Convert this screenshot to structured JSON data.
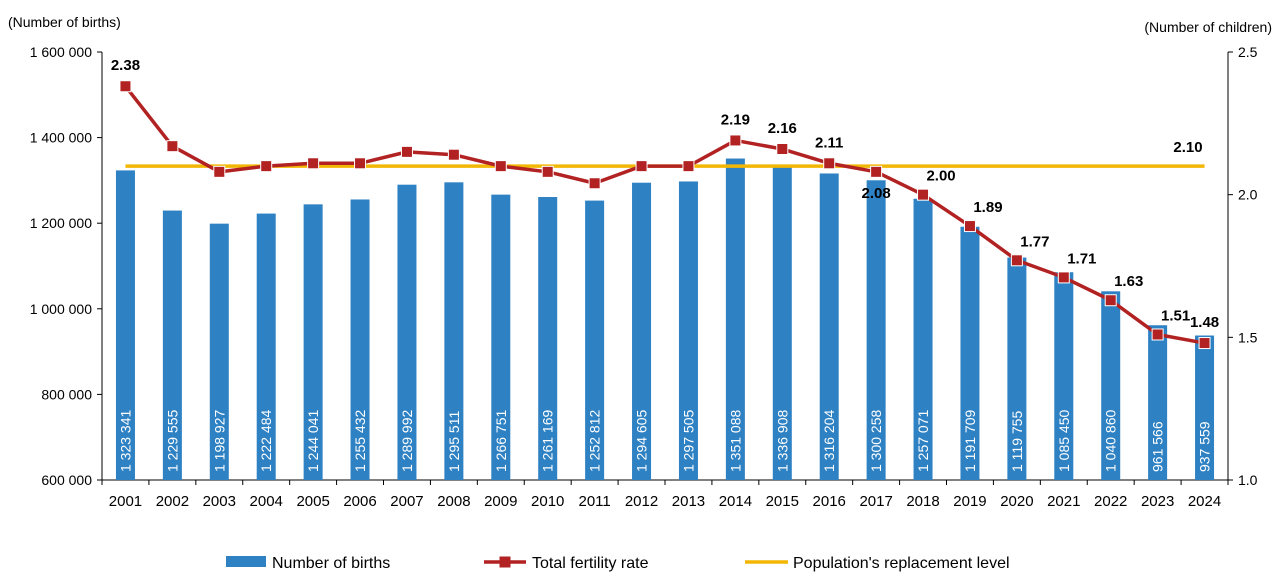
{
  "chart_data": {
    "type": "bar",
    "left_axis_title": "(Number of births)",
    "right_axis_title": "(Number of children)",
    "categories": [
      "2001",
      "2002",
      "2003",
      "2004",
      "2005",
      "2006",
      "2007",
      "2008",
      "2009",
      "2010",
      "2011",
      "2012",
      "2013",
      "2014",
      "2015",
      "2016",
      "2017",
      "2018",
      "2019",
      "2020",
      "2021",
      "2022",
      "2023",
      "2024"
    ],
    "ylim_left": [
      600000,
      1600000
    ],
    "yticks_left": [
      "600 000",
      "800 000",
      "1 000 000",
      "1 200 000",
      "1 400 000",
      "1 600 000"
    ],
    "ylim_right": [
      1.0,
      2.5
    ],
    "yticks_right": [
      "1.0",
      "1.5",
      "2.0",
      "2.5"
    ],
    "series": [
      {
        "name": "Number of births",
        "kind": "bar",
        "axis": "left",
        "color": "#2E81C3",
        "values": [
          1323341,
          1229555,
          1198927,
          1222484,
          1244041,
          1255432,
          1289992,
          1295511,
          1266751,
          1261169,
          1252812,
          1294605,
          1297505,
          1351088,
          1336908,
          1316204,
          1300258,
          1257071,
          1191709,
          1119755,
          1085450,
          1040860,
          961566,
          937559
        ],
        "value_labels": [
          "1 323 341",
          "1 229 555",
          "1 198 927",
          "1 222 484",
          "1 244 041",
          "1 255 432",
          "1 289 992",
          "1 295 511",
          "1 266 751",
          "1 261 169",
          "1 252 812",
          "1 294 605",
          "1 297 505",
          "1 351 088",
          "1 336 908",
          "1 316 204",
          "1 300 258",
          "1 257 071",
          "1 191 709",
          "1 119 755",
          "1 085 450",
          "1 040 860",
          "961 566",
          "937 559"
        ]
      },
      {
        "name": "Total fertility rate",
        "kind": "line",
        "axis": "right",
        "color": "#B22222",
        "values": [
          2.38,
          2.17,
          2.08,
          2.1,
          2.11,
          2.11,
          2.15,
          2.14,
          2.1,
          2.08,
          2.04,
          2.1,
          2.1,
          2.19,
          2.16,
          2.11,
          2.08,
          2.0,
          1.89,
          1.77,
          1.71,
          1.63,
          1.51,
          1.48
        ],
        "point_labels": [
          "2.38",
          "",
          "",
          "",
          "",
          "",
          "",
          "",
          "",
          "",
          "",
          "",
          "",
          "2.19",
          "2.16",
          "2.11",
          "2.08",
          "2.00",
          "1.89",
          "1.77",
          "1.71",
          "1.63",
          "1.51",
          "1.48"
        ]
      },
      {
        "name": "Population's replacement level",
        "kind": "reference-line",
        "axis": "right",
        "color": "#F2B705",
        "value": 2.1,
        "label": "2.10"
      }
    ],
    "legend_position": "bottom",
    "grid": false
  }
}
